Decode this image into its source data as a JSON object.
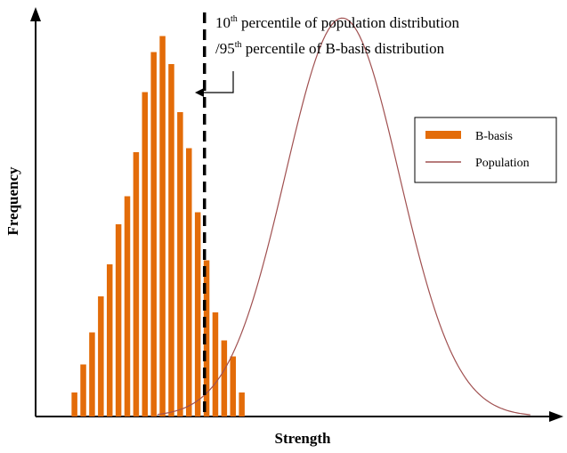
{
  "chart_data": {
    "type": "bar",
    "title": "",
    "xlabel": "Strength",
    "ylabel": "Frequency",
    "xlim": [
      0,
      100
    ],
    "ylim": [
      0,
      100
    ],
    "grid": false,
    "legend_position": "top-right",
    "series": [
      {
        "name": "B-basis",
        "kind": "histogram",
        "color": "#E36C09",
        "x": [
          7.5,
          9.2,
          10.9,
          12.6,
          14.3,
          16.0,
          17.7,
          19.4,
          21.1,
          22.8,
          24.5,
          26.2,
          27.9,
          29.6,
          31.3,
          33.0,
          34.7,
          36.4,
          38.1,
          39.8
        ],
        "values": [
          6,
          13,
          21,
          30,
          38,
          48,
          55,
          66,
          81,
          91,
          95,
          88,
          76,
          67,
          51,
          39,
          26,
          19,
          15,
          6
        ]
      },
      {
        "name": "Population",
        "kind": "curve",
        "color": "#A05050",
        "mean": 59.2,
        "sd": 11.0,
        "peak": 99.5,
        "x_range": [
          23.5,
          95.5
        ]
      }
    ],
    "reference_line": {
      "x": 32.6,
      "style": "dashed",
      "color": "#000000"
    },
    "annotation": {
      "line1_base": "10",
      "line1_sup": "th",
      "line1_rest": " percentile of population distribution",
      "line2_base": "/95",
      "line2_sup": "th",
      "line2_rest": " percentile of B-basis distribution"
    },
    "legend": [
      {
        "label": "B-basis",
        "marker": "bar",
        "color": "#E36C09"
      },
      {
        "label": "Population",
        "marker": "line",
        "color": "#A05050"
      }
    ]
  }
}
